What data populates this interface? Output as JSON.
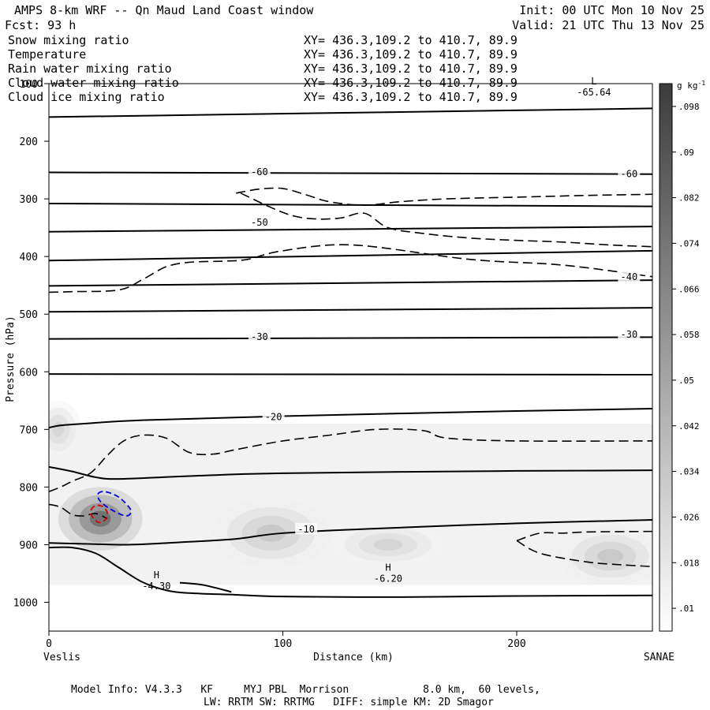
{
  "header": {
    "title": "AMPS 8-km WRF -- Qn Maud Land Coast window",
    "forecast": "Fcst:   93 h",
    "init": "Init: 00 UTC Mon 10 Nov 25",
    "valid": "Valid: 21 UTC Thu 13 Nov 25"
  },
  "fields": [
    {
      "name": "Snow mixing ratio",
      "xy": "XY= 436.3,109.2 to 410.7, 89.9",
      "color": "#000000"
    },
    {
      "name": "Temperature",
      "xy": "XY= 436.3,109.2 to 410.7, 89.9",
      "color": "#000000"
    },
    {
      "name": "Rain water mixing ratio",
      "xy": "XY= 436.3,109.2 to 410.7, 89.9",
      "color": "#cc0000"
    },
    {
      "name": "Cloud water mixing ratio",
      "xy": "XY= 436.3,109.2 to 410.7, 89.9",
      "color": "#0000cc"
    },
    {
      "name": "Cloud ice mixing ratio",
      "xy": "XY= 436.3,109.2 to 410.7, 89.9",
      "color": "#000000"
    }
  ],
  "colorbar": {
    "unit": "g kg",
    "unit_sup": "-1",
    "labels": [
      ".01",
      ".018",
      ".026",
      ".034",
      ".042",
      ".05",
      ".058",
      ".066",
      ".074",
      ".082",
      ".09",
      ".098"
    ]
  },
  "footer": {
    "line1": "Model Info: V4.3.3   KF     MYJ PBL  Morrison            8.0 km,  60 levels,",
    "line2": "LW: RRTM SW: RRTMG   DIFF: simple KM: 2D Smagor"
  },
  "chart_data": {
    "type": "contour",
    "title": "AMPS 8-km WRF -- Qn Maud Land Coast window",
    "xlabel": "Distance (km)",
    "ylabel": "Pressure (hPa)",
    "xlim": [
      0,
      258
    ],
    "ylim": [
      1050,
      100
    ],
    "x_ticks": [
      0,
      100,
      200
    ],
    "y_ticks": [
      100,
      200,
      300,
      400,
      500,
      600,
      700,
      800,
      900,
      1000
    ],
    "x_endpoints": {
      "left": "Veslis",
      "right": "SANAE"
    },
    "extremes": [
      {
        "type": "L",
        "value": "-65.64",
        "x": 233,
        "p": 118
      },
      {
        "type": "H",
        "value": "-4.30",
        "x": 46,
        "p": 975
      },
      {
        "type": "H",
        "value": "-6.20",
        "x": 145,
        "p": 962
      }
    ],
    "isotherm_labels": [
      {
        "value": "-60",
        "x": 90,
        "p": 255
      },
      {
        "value": "-60",
        "x": 248,
        "p": 258
      },
      {
        "value": "-50",
        "x": 90,
        "p": 342
      },
      {
        "value": "-40",
        "x": 248,
        "p": 437
      },
      {
        "value": "-30",
        "x": 90,
        "p": 541
      },
      {
        "value": "-30",
        "x": 248,
        "p": 537
      },
      {
        "value": "-20",
        "x": 96,
        "p": 680
      },
      {
        "value": "-10",
        "x": 110,
        "p": 875
      }
    ],
    "isotherms": [
      {
        "x": [
          0,
          258
        ],
        "p": [
          158,
          143
        ]
      },
      {
        "x": [
          0,
          258
        ],
        "p": [
          254,
          257
        ]
      },
      {
        "x": [
          0,
          258
        ],
        "p": [
          308,
          313
        ]
      },
      {
        "x": [
          0,
          258
        ],
        "p": [
          357,
          348
        ]
      },
      {
        "x": [
          0,
          258
        ],
        "p": [
          407,
          390
        ]
      },
      {
        "x": [
          0,
          258
        ],
        "p": [
          451,
          441
        ]
      },
      {
        "x": [
          0,
          258
        ],
        "p": [
          496,
          489
        ]
      },
      {
        "x": [
          0,
          258
        ],
        "p": [
          543,
          540
        ]
      },
      {
        "x": [
          0,
          258
        ],
        "p": [
          604,
          605
        ]
      },
      {
        "x": [
          0,
          5,
          15,
          40,
          100,
          200,
          258
        ],
        "p": [
          697,
          693,
          690,
          684,
          677,
          668,
          664
        ]
      },
      {
        "x": [
          0,
          10,
          20,
          30,
          60,
          100,
          200,
          258
        ],
        "p": [
          765,
          773,
          783,
          786,
          781,
          776,
          772,
          771
        ]
      },
      {
        "x": [
          0,
          10,
          20,
          35,
          60,
          80,
          100,
          140,
          200,
          258
        ],
        "p": [
          897,
          898,
          899,
          900,
          895,
          890,
          880,
          872,
          863,
          857
        ]
      },
      {
        "x": [
          0,
          10,
          20,
          30,
          40,
          50,
          60,
          80,
          100,
          150,
          200,
          258
        ],
        "p": [
          905,
          905,
          915,
          940,
          965,
          979,
          984,
          987,
          990,
          991,
          989,
          988
        ]
      },
      {
        "x": [
          56,
          66,
          78
        ],
        "p": [
          966,
          970,
          982
        ]
      }
    ],
    "snow_contours": [
      {
        "x": [
          0,
          10,
          30,
          40,
          50,
          60,
          75,
          85,
          100,
          130,
          180,
          220,
          258
        ],
        "p": [
          462,
          461,
          458,
          440,
          418,
          410,
          408,
          405,
          390,
          380,
          405,
          415,
          435
        ]
      },
      {
        "x": [
          80,
          90,
          100,
          110,
          120,
          135,
          150,
          170,
          200,
          230,
          258
        ],
        "p": [
          290,
          283,
          282,
          293,
          305,
          311,
          305,
          300,
          297,
          294,
          292
        ]
      },
      {
        "x": [
          82,
          95,
          105,
          115,
          125,
          135,
          145,
          160,
          180,
          200,
          220,
          240,
          258
        ],
        "p": [
          290,
          315,
          330,
          335,
          333,
          325,
          350,
          360,
          368,
          372,
          375,
          380,
          383
        ]
      },
      {
        "x": [
          0,
          5,
          10,
          18,
          25,
          32,
          40,
          50,
          60,
          70,
          80,
          100,
          120,
          140,
          160,
          170,
          200,
          258
        ],
        "p": [
          808,
          800,
          790,
          775,
          745,
          720,
          710,
          715,
          740,
          743,
          735,
          720,
          710,
          700,
          702,
          715,
          720,
          720
        ]
      },
      {
        "x": [
          0,
          5,
          10,
          15,
          20,
          25
        ],
        "p": [
          830,
          835,
          848,
          850,
          846,
          855
        ]
      },
      {
        "x": [
          200,
          210,
          220,
          230,
          258
        ],
        "p": [
          893,
          880,
          880,
          878,
          877
        ]
      },
      {
        "x": [
          200,
          210,
          230,
          245,
          258
        ],
        "p": [
          893,
          915,
          930,
          935,
          938
        ]
      }
    ],
    "rain_contours": [
      {
        "x": [
          18,
          20,
          23,
          25,
          24,
          21,
          18
        ],
        "p": [
          840,
          832,
          834,
          845,
          857,
          861,
          848
        ]
      }
    ],
    "cloud_water_contours": [
      {
        "x": [
          21,
          24,
          30,
          35,
          33,
          27,
          22
        ],
        "p": [
          812,
          808,
          818,
          840,
          850,
          840,
          825
        ]
      }
    ],
    "shading_blobs": [
      {
        "x": 22,
        "p": 855,
        "rx": 18,
        "rp": 55,
        "q": 0.098
      },
      {
        "x": 95,
        "p": 880,
        "rx": 25,
        "rp": 60,
        "q": 0.042
      },
      {
        "x": 145,
        "p": 900,
        "rx": 25,
        "rp": 40,
        "q": 0.034
      },
      {
        "x": 240,
        "p": 920,
        "rx": 22,
        "rp": 50,
        "q": 0.042
      },
      {
        "x": 4,
        "p": 700,
        "rx": 10,
        "rp": 50,
        "q": 0.034
      }
    ],
    "shading_band": {
      "x": [
        0,
        258
      ],
      "p_top": 690,
      "p_bottom": 970,
      "q": 0.018
    }
  }
}
